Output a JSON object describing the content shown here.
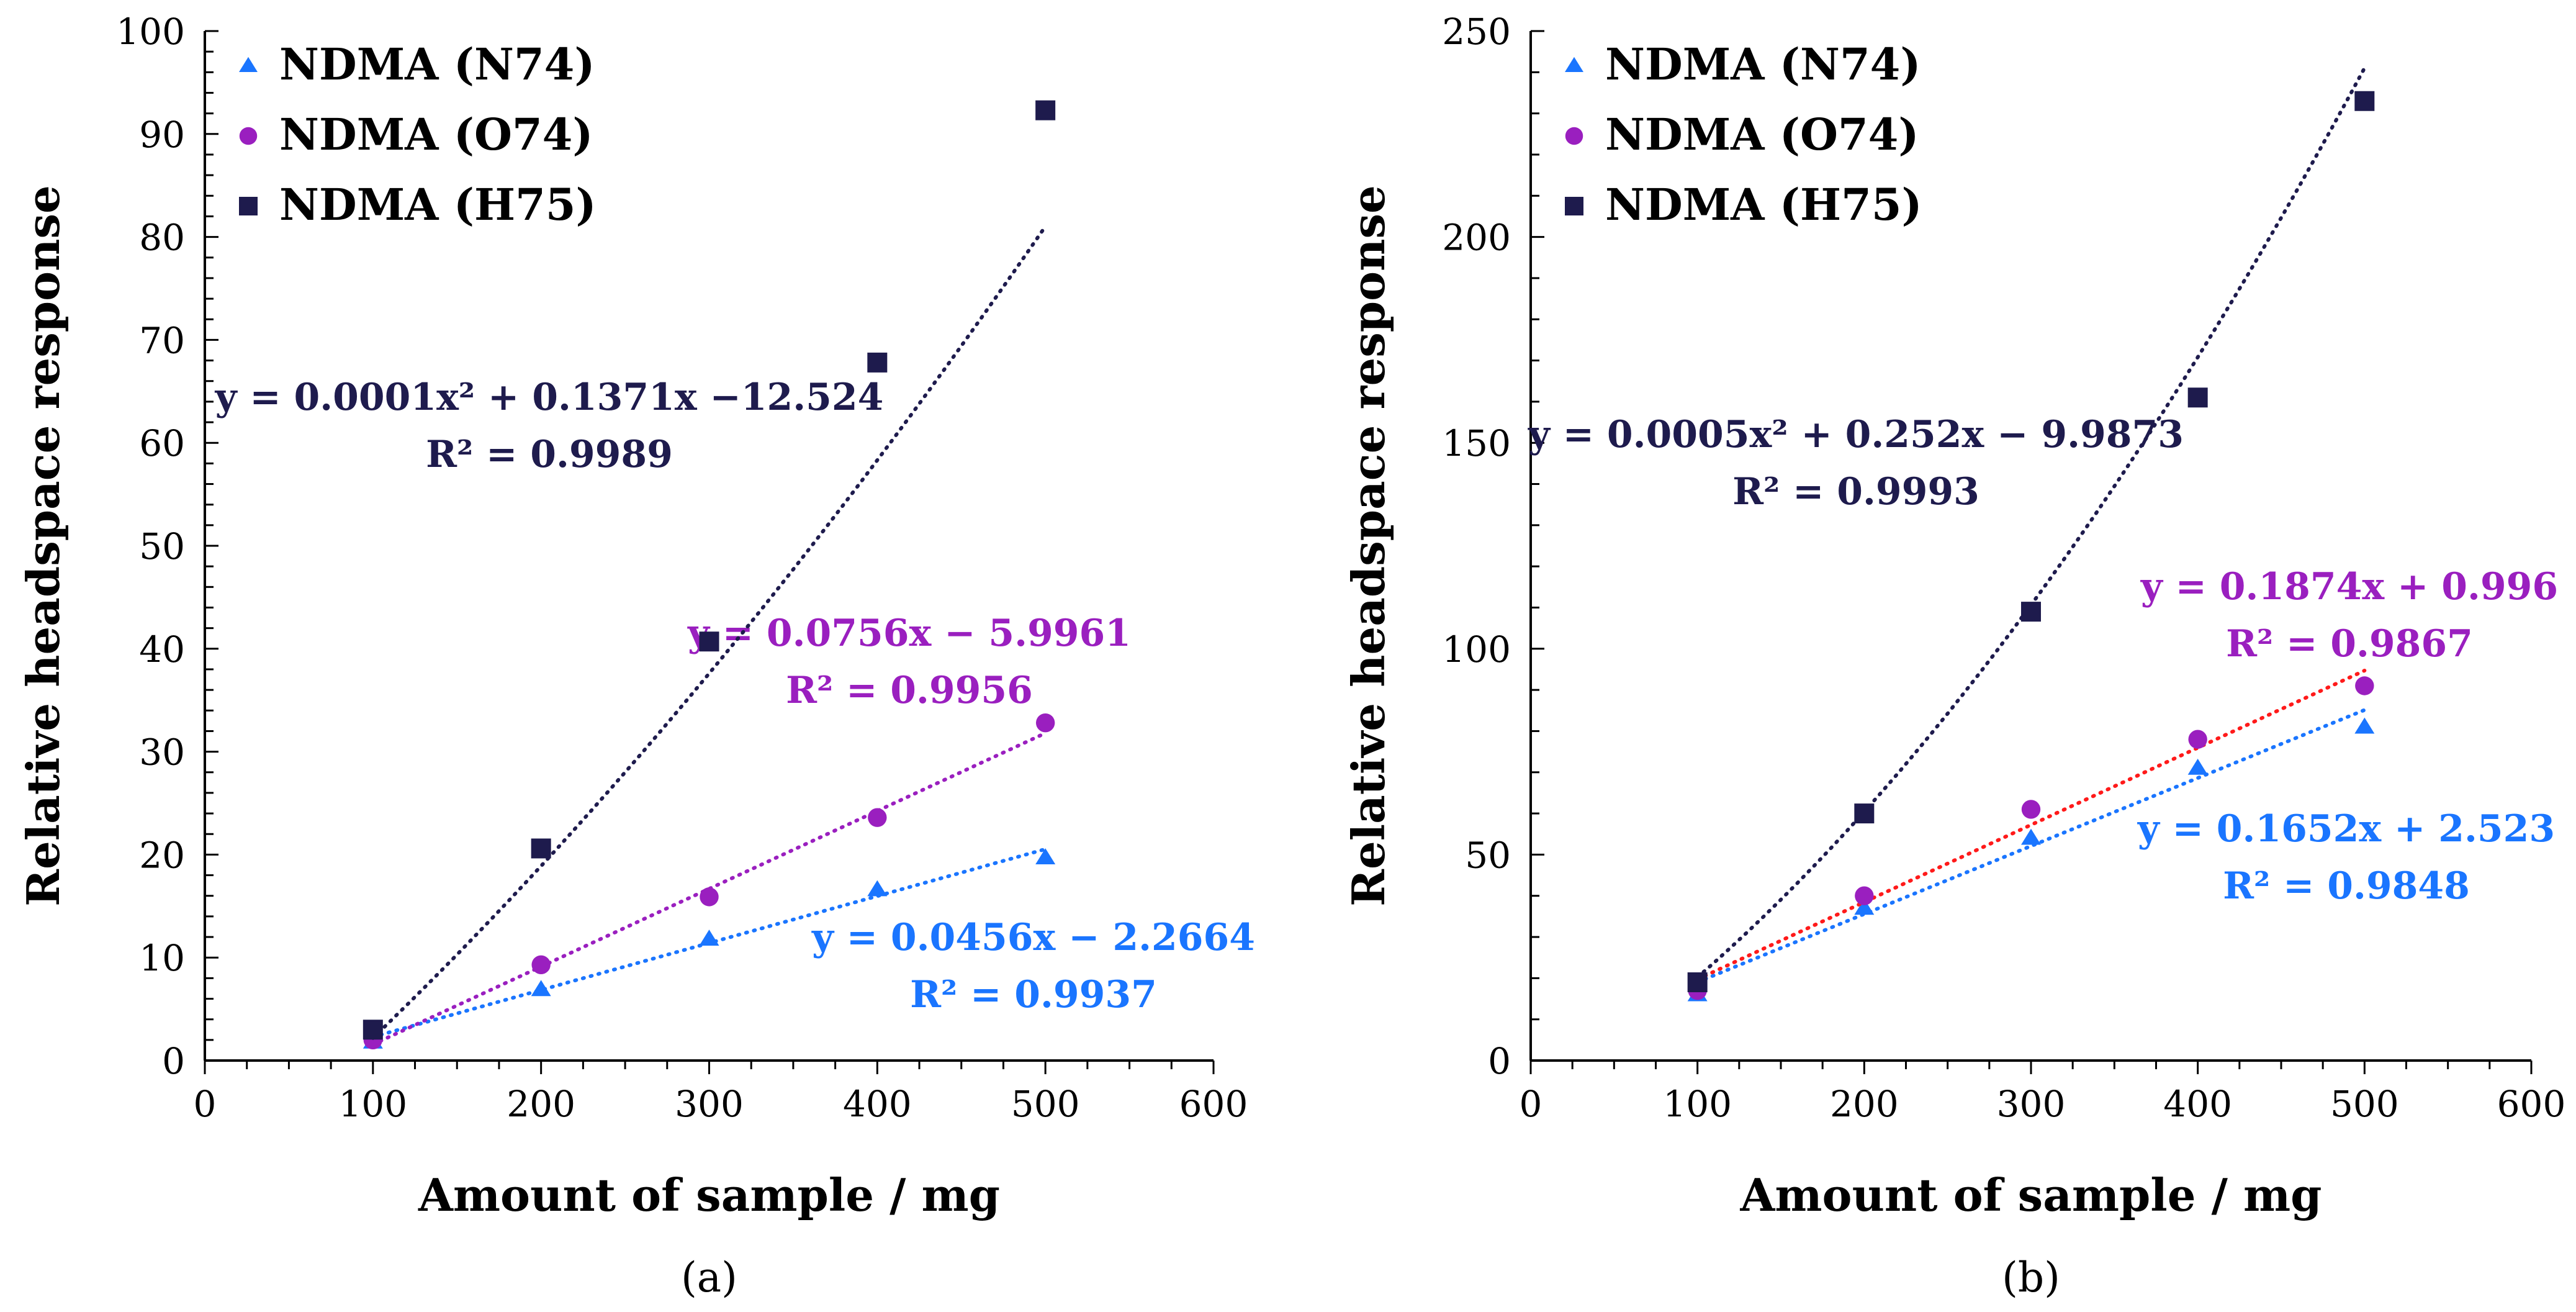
{
  "chart_data": [
    {
      "type": "scatter",
      "panel_label": "(a)",
      "xlabel": "Amount of sample / mg",
      "ylabel": "Relative headspace response",
      "xlim": [
        0,
        600
      ],
      "ylim": [
        0,
        100
      ],
      "x_ticks": [
        "0",
        "100",
        "200",
        "300",
        "400",
        "500",
        "600"
      ],
      "y_ticks": [
        "0",
        "10",
        "20",
        "30",
        "40",
        "50",
        "60",
        "70",
        "80",
        "90",
        "100"
      ],
      "x_step": 100,
      "y_step": 10,
      "grid": false,
      "legend_position": "top-left",
      "series": [
        {
          "name": "NDMA (N74)",
          "marker": "triangle",
          "color": "#1a75ff",
          "trend_color": "#1a75ff",
          "x": [
            100,
            200,
            300,
            400,
            500
          ],
          "y": [
            1.8,
            6.9,
            11.8,
            16.6,
            19.7
          ],
          "trend": {
            "type": "linear",
            "coef": [
              0.0456,
              -2.2664
            ]
          },
          "equation": "y = 0.0456x − 2.2664",
          "r2": "R² = 0.9937"
        },
        {
          "name": "NDMA (O74)",
          "marker": "circle",
          "color": "#9a1fbf",
          "trend_color": "#9a1fbf",
          "x": [
            100,
            200,
            300,
            400,
            500
          ],
          "y": [
            2.0,
            9.3,
            15.9,
            23.6,
            32.8
          ],
          "trend": {
            "type": "linear",
            "coef": [
              0.0756,
              -5.9961
            ]
          },
          "equation": "y = 0.0756x − 5.9961",
          "r2": "R² = 0.9956"
        },
        {
          "name": "NDMA (H75)",
          "marker": "square",
          "color": "#1e1b4d",
          "trend_color": "#1e1b4d",
          "x": [
            100,
            200,
            300,
            400,
            500
          ],
          "y": [
            3.0,
            20.6,
            40.7,
            67.8,
            92.3
          ],
          "trend": {
            "type": "poly2",
            "coef": [
              0.0001,
              0.1371,
              -12.524
            ]
          },
          "equation": "y = 0.0001x² + 0.1371x −12.524",
          "r2": "R² = 0.9989"
        }
      ]
    },
    {
      "type": "scatter",
      "panel_label": "(b)",
      "xlabel": "Amount of sample / mg",
      "ylabel": "Relative headspace response",
      "xlim": [
        0,
        600
      ],
      "ylim": [
        0,
        250
      ],
      "x_ticks": [
        "0",
        "100",
        "200",
        "300",
        "400",
        "500",
        "600"
      ],
      "y_ticks": [
        "0",
        "50",
        "100",
        "150",
        "200",
        "250"
      ],
      "x_step": 100,
      "y_step": 50,
      "grid": false,
      "legend_position": "top-left",
      "series": [
        {
          "name": "NDMA (N74)",
          "marker": "triangle",
          "color": "#1a75ff",
          "trend_color": "#1a75ff",
          "x": [
            100,
            200,
            300,
            400,
            500
          ],
          "y": [
            16,
            37,
            54,
            71,
            81
          ],
          "trend": {
            "type": "linear",
            "coef": [
              0.1652,
              2.523
            ]
          },
          "equation": "y = 0.1652x + 2.523",
          "r2": "R² = 0.9848"
        },
        {
          "name": "NDMA (O74)",
          "marker": "circle",
          "color": "#9a1fbf",
          "trend_color": "#ff1a1a",
          "x": [
            100,
            200,
            300,
            400,
            500
          ],
          "y": [
            17,
            40,
            61,
            78,
            91
          ],
          "trend": {
            "type": "linear",
            "coef": [
              0.1874,
              0.996
            ]
          },
          "equation": "y = 0.1874x + 0.996",
          "r2": "R² = 0.9867"
        },
        {
          "name": "NDMA (H75)",
          "marker": "square",
          "color": "#1e1b4d",
          "trend_color": "#1e1b4d",
          "x": [
            100,
            200,
            300,
            400,
            500
          ],
          "y": [
            19,
            60,
            109,
            161,
            233
          ],
          "trend": {
            "type": "poly2",
            "coef": [
              0.0005,
              0.252,
              -9.9873
            ]
          },
          "equation": "y = 0.0005x² + 0.252x − 9.9873",
          "r2": "R² = 0.9993"
        }
      ]
    }
  ]
}
